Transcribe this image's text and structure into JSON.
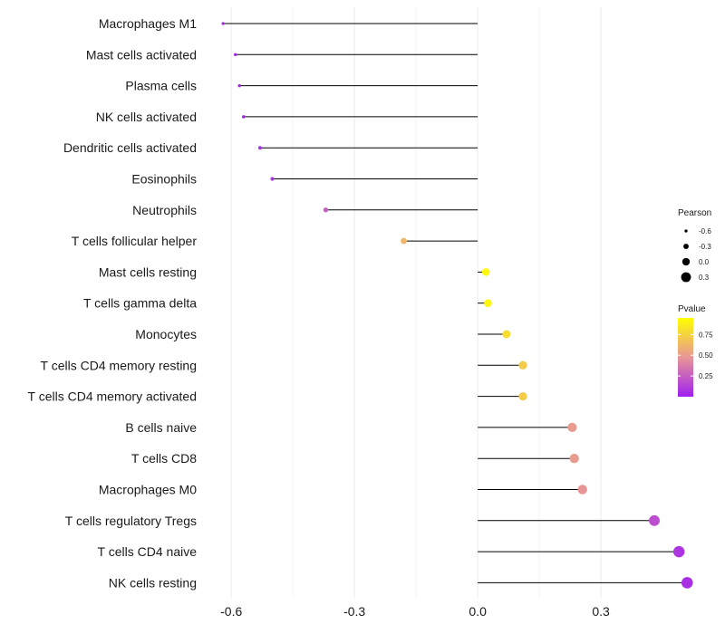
{
  "chart_data": {
    "type": "lollipop",
    "title": "",
    "xlabel": "",
    "ylabel": "",
    "xlim": [
      -0.66,
      0.58
    ],
    "x_ticks": [
      -0.6,
      -0.3,
      0.0,
      0.3
    ],
    "x_tick_labels": [
      "-0.6",
      "-0.3",
      "0.0",
      "0.3"
    ],
    "grid": true,
    "points": [
      {
        "label": "Macrophages M1",
        "pearson": -0.62,
        "pvalue": 0.0
      },
      {
        "label": "Mast cells activated",
        "pearson": -0.59,
        "pvalue": 0.02
      },
      {
        "label": "Plasma cells",
        "pearson": -0.58,
        "pvalue": 0.03
      },
      {
        "label": "NK cells activated",
        "pearson": -0.57,
        "pvalue": 0.04
      },
      {
        "label": "Dendritic cells activated",
        "pearson": -0.53,
        "pvalue": 0.06
      },
      {
        "label": "Eosinophils",
        "pearson": -0.5,
        "pvalue": 0.08
      },
      {
        "label": "Neutrophils",
        "pearson": -0.37,
        "pvalue": 0.25
      },
      {
        "label": "T cells follicular helper",
        "pearson": -0.18,
        "pvalue": 0.62
      },
      {
        "label": "Mast cells resting",
        "pearson": 0.02,
        "pvalue": 0.92
      },
      {
        "label": "T cells gamma delta",
        "pearson": 0.025,
        "pvalue": 0.91
      },
      {
        "label": "Monocytes",
        "pearson": 0.07,
        "pvalue": 0.8
      },
      {
        "label": "T cells CD4 memory resting",
        "pearson": 0.11,
        "pvalue": 0.72
      },
      {
        "label": "T cells CD4 memory activated",
        "pearson": 0.11,
        "pvalue": 0.72
      },
      {
        "label": "B cells naive",
        "pearson": 0.23,
        "pvalue": 0.5
      },
      {
        "label": "T cells CD8",
        "pearson": 0.235,
        "pvalue": 0.5
      },
      {
        "label": "Macrophages M0",
        "pearson": 0.255,
        "pvalue": 0.47
      },
      {
        "label": "T cells regulatory  Tregs",
        "pearson": 0.43,
        "pvalue": 0.18
      },
      {
        "label": "T cells CD4 naive",
        "pearson": 0.49,
        "pvalue": 0.08
      },
      {
        "label": "NK cells resting",
        "pearson": 0.51,
        "pvalue": 0.06
      }
    ],
    "legend": {
      "size_title": "Pearson",
      "size_values": [
        -0.6,
        -0.3,
        0.0,
        0.3
      ],
      "size_labels": [
        "-0.6",
        "-0.3",
        "0.0",
        "0.3"
      ],
      "color_title": "Pvalue",
      "color_values": [
        0.25,
        0.5,
        0.75
      ],
      "color_labels": [
        "0.25",
        "0.50",
        "0.75"
      ],
      "color_range": [
        0.0,
        0.95
      ],
      "color_low": "#a020f0",
      "color_high": "#ffff00"
    }
  }
}
